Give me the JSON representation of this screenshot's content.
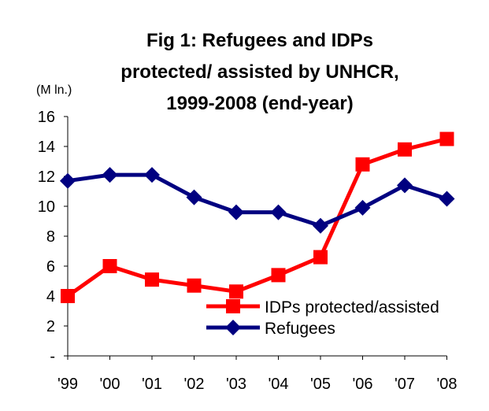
{
  "chart_data": {
    "type": "line",
    "title_lines": [
      "Fig 1: Refugees and IDPs",
      "protected/ assisted by UNHCR,",
      "1999-2008 (end-year)"
    ],
    "unit_label": "(M ln.)",
    "categories": [
      "'99",
      "'00",
      "'01",
      "'02",
      "'03",
      "'04",
      "'05",
      "'06",
      "'07",
      "'08"
    ],
    "ylim": [
      0,
      16
    ],
    "yticks": [
      0,
      2,
      4,
      6,
      8,
      10,
      12,
      14,
      16
    ],
    "ytick_labels": [
      "-",
      "2",
      "4",
      "6",
      "8",
      "10",
      "12",
      "14",
      "16"
    ],
    "xlabel": "",
    "ylabel": "",
    "grid": false,
    "legend_position": "bottom-right",
    "series": [
      {
        "name": "IDPs protected/assisted",
        "color": "#ff0000",
        "marker": "square",
        "values": [
          4.0,
          6.0,
          5.1,
          4.7,
          4.3,
          5.4,
          6.6,
          12.8,
          13.8,
          14.5
        ]
      },
      {
        "name": "Refugees",
        "color": "#000080",
        "marker": "diamond",
        "values": [
          11.7,
          12.1,
          12.1,
          10.6,
          9.6,
          9.6,
          8.7,
          9.9,
          11.4,
          10.5
        ]
      }
    ]
  }
}
